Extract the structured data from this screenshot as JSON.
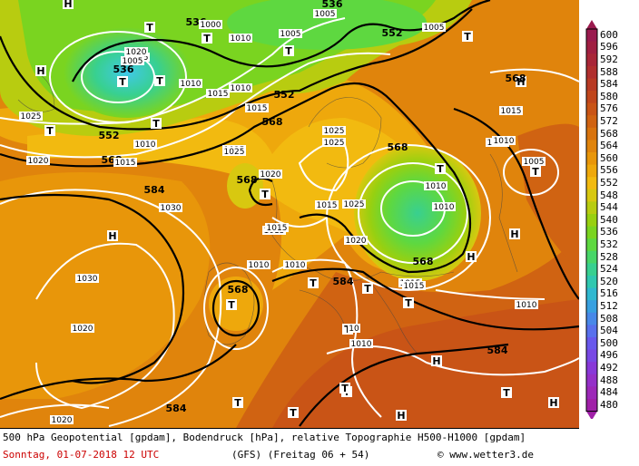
{
  "footer": {
    "line1": "500 hPa Geopotential [gpdam], Bodendruck [hPa], relative Topographie H500-H1000 [gpdam]",
    "date": "Sonntag, 01-07-2018  12 UTC",
    "model": "(GFS)  (Freitag 06 + 54)",
    "credit": "© www.wetter3.de"
  },
  "legend": {
    "values": [
      "600",
      "596",
      "592",
      "588",
      "584",
      "580",
      "576",
      "572",
      "568",
      "564",
      "560",
      "556",
      "552",
      "548",
      "544",
      "540",
      "536",
      "532",
      "528",
      "524",
      "520",
      "516",
      "512",
      "508",
      "504",
      "500",
      "496",
      "492",
      "488",
      "484",
      "480"
    ],
    "colors": [
      "#9a1a4e",
      "#a01f42",
      "#a82638",
      "#b02f2e",
      "#b83a24",
      "#c0461c",
      "#c95416",
      "#d06312",
      "#d8730e",
      "#e0840c",
      "#e8960a",
      "#eea80c",
      "#f2ba10",
      "#d8c810",
      "#b8cc10",
      "#98d010",
      "#7ad420",
      "#5ed840",
      "#48d668",
      "#38d090",
      "#30c8b0",
      "#30b8d0",
      "#38a0e0",
      "#4888e8",
      "#5870ec",
      "#6858ec",
      "#7848e4",
      "#8838d8",
      "#9430c8",
      "#9c28b8",
      "#a020a8"
    ]
  },
  "map": {
    "geopotential_labels": [
      {
        "text": "536",
        "ix": 0
      },
      {
        "text": "536",
        "ix": 1
      },
      {
        "text": "536",
        "ix": 2
      },
      {
        "text": "552",
        "ix": 3
      },
      {
        "text": "552",
        "ix": 4
      },
      {
        "text": "552",
        "ix": 5
      },
      {
        "text": "568",
        "ix": 6
      },
      {
        "text": "568",
        "ix": 7
      },
      {
        "text": "568",
        "ix": 8
      },
      {
        "text": "568",
        "ix": 9
      },
      {
        "text": "568",
        "ix": 10
      },
      {
        "text": "568",
        "ix": 11
      },
      {
        "text": "568",
        "ix": 12
      },
      {
        "text": "584",
        "ix": 13
      },
      {
        "text": "584",
        "ix": 14
      },
      {
        "text": "584",
        "ix": 15
      },
      {
        "text": "584",
        "ix": 16
      }
    ],
    "isobar_labels": [
      "1000",
      "1005",
      "1005",
      "1005",
      "1010",
      "1005",
      "1010",
      "1010",
      "1015",
      "1015",
      "1020",
      "1015",
      "1025",
      "1025",
      "1025",
      "1020",
      "1025",
      "1015",
      "1005",
      "1010",
      "1020",
      "1010",
      "1010",
      "1015",
      "1015",
      "1010",
      "1010",
      "1030",
      "1025",
      "1030",
      "1020",
      "1020",
      "1015",
      "1010",
      "1005",
      "1010",
      "1010",
      "1015",
      "1010",
      "1015",
      "1020",
      "1025",
      "10"
    ],
    "pressure_centers": [
      "H",
      "T",
      "T",
      "T",
      "T",
      "T",
      "T",
      "T",
      "T",
      "T",
      "T",
      "T",
      "T",
      "T",
      "H",
      "H",
      "H",
      "H",
      "T",
      "T",
      "H",
      "T",
      "T",
      "H",
      "T",
      "T",
      "T",
      "T",
      "H",
      "H"
    ]
  }
}
